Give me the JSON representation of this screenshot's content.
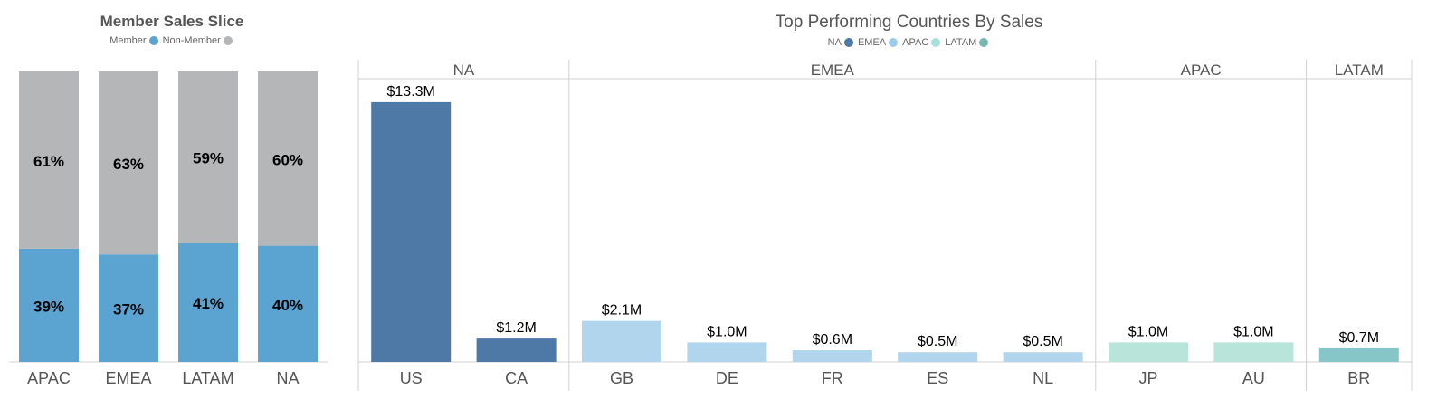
{
  "left_chart": {
    "title": "Member Sales Slice",
    "legend": [
      {
        "label": "Member",
        "color": "#5ba3d0"
      },
      {
        "label": "Non-Member",
        "color": "#b4b6b7"
      }
    ]
  },
  "right_chart": {
    "title": "Top Performing Countries By Sales",
    "legend": [
      {
        "label": "NA",
        "color": "#4e79a7"
      },
      {
        "label": "EMEA",
        "color": "#a0cbe8"
      },
      {
        "label": "APAC",
        "color": "#a8e0dc"
      },
      {
        "label": "LATAM",
        "color": "#76b7b2"
      }
    ]
  },
  "chart_data": [
    {
      "type": "bar",
      "title": "Member Sales Slice",
      "stacked": true,
      "percent": true,
      "categories": [
        "APAC",
        "EMEA",
        "LATAM",
        "NA"
      ],
      "series": [
        {
          "name": "Member",
          "color": "#5ba3d0",
          "values": [
            39,
            37,
            41,
            40
          ],
          "labels": [
            "39%",
            "37%",
            "41%",
            "40%"
          ]
        },
        {
          "name": "Non-Member",
          "color": "#b4b6b7",
          "values": [
            61,
            63,
            59,
            60
          ],
          "labels": [
            "61%",
            "63%",
            "59%",
            "60%"
          ]
        }
      ],
      "ylim": [
        0,
        100
      ],
      "grid": false
    },
    {
      "type": "bar",
      "title": "Top Performing Countries By Sales",
      "ylim": [
        0,
        14.5
      ],
      "grid": false,
      "groups": [
        {
          "name": "NA",
          "color": "#4e79a7",
          "categories": [
            "US",
            "CA"
          ],
          "values": [
            13.3,
            1.2
          ],
          "labels": [
            "$13.3M",
            "$1.2M"
          ]
        },
        {
          "name": "EMEA",
          "color": "#b0d5ec",
          "categories": [
            "GB",
            "DE",
            "FR",
            "ES",
            "NL"
          ],
          "values": [
            2.1,
            1.0,
            0.6,
            0.5,
            0.5
          ],
          "labels": [
            "$2.1M",
            "$1.0M",
            "$0.6M",
            "$0.5M",
            "$0.5M"
          ]
        },
        {
          "name": "APAC",
          "color": "#b9e4d9",
          "categories": [
            "JP",
            "AU"
          ],
          "values": [
            1.0,
            1.0
          ],
          "labels": [
            "$1.0M",
            "$1.0M"
          ]
        },
        {
          "name": "LATAM",
          "color": "#86c5c8",
          "categories": [
            "BR"
          ],
          "values": [
            0.7
          ],
          "labels": [
            "$0.7M"
          ]
        }
      ]
    }
  ]
}
